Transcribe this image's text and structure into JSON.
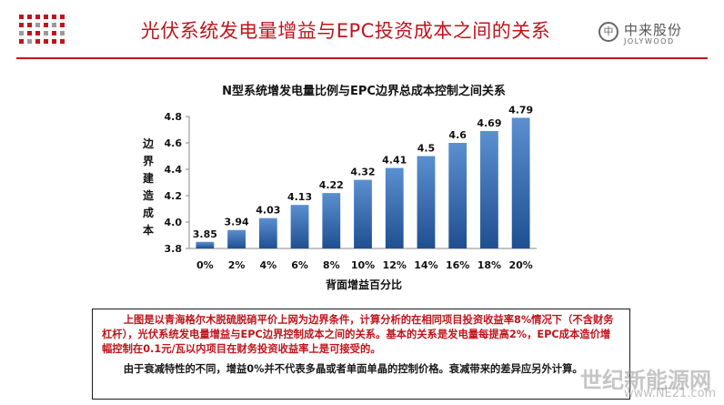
{
  "slide": {
    "title": "光伏系统发电量增益与EPC投资成本之间的关系"
  },
  "logo": {
    "cn": "中来股份",
    "en": "JOLYWOOD",
    "mark": "中"
  },
  "note": {
    "p1": "上图是以青海格尔木脱硫脱硝平价上网为边界条件，计算分析的在相同项目投资收益率8%情况下（不含财务杠杆），光伏系统发电量增益与EPC边界控制成本之间的关系。基本的关系是发电量每提高2%，EPC成本造价增幅控制在0.1元/瓦以内项目在财务投资收益率上是可接受的。",
    "p2": "由于衰减特性的不同，增益0%并不代表多晶或者单面单晶的控制价格。衰减带来的差异应另外计算。"
  },
  "watermark": {
    "cn": "世纪新能源网",
    "url": "www.NE21.com"
  },
  "colors": {
    "accent_red": "#c0141c",
    "bar_blue_top": "#5b8fd0",
    "bar_blue_bottom": "#1f4f91"
  },
  "chart_data": {
    "type": "bar",
    "title": "N型系统增发电量比例与EPC边界总成本控制之间关系",
    "xlabel": "背面增益百分比",
    "ylabel": "边界建造成本",
    "categories": [
      "0%",
      "2%",
      "4%",
      "6%",
      "8%",
      "10%",
      "12%",
      "14%",
      "16%",
      "18%",
      "20%"
    ],
    "values": [
      3.85,
      3.94,
      4.03,
      4.13,
      4.22,
      4.32,
      4.41,
      4.5,
      4.6,
      4.69,
      4.79
    ],
    "value_labels": [
      "3.85",
      "3.94",
      "4.03",
      "4.13",
      "4.22",
      "4.32",
      "4.41",
      "4.5",
      "4.6",
      "4.69",
      "4.79"
    ],
    "ylim": [
      3.8,
      4.8
    ],
    "yticks": [
      "3.8",
      "4.0",
      "4.2",
      "4.4",
      "4.6",
      "4.8"
    ],
    "grid": false,
    "legend": "none"
  }
}
